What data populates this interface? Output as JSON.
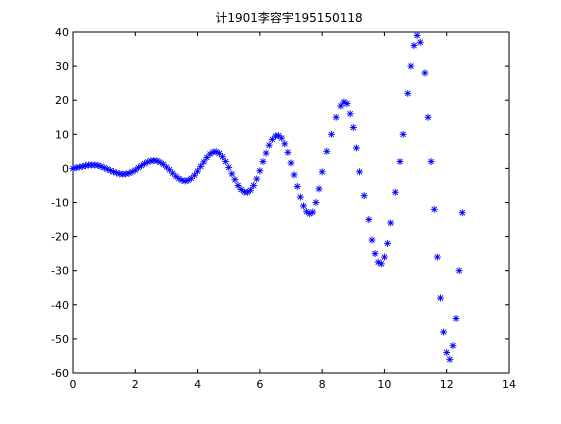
{
  "chart_data": {
    "type": "scatter",
    "title": "计1901李容宇195150118",
    "xlabel": "",
    "ylabel": "",
    "xlim": [
      0,
      14
    ],
    "ylim": [
      -60,
      40
    ],
    "xticks": [
      0,
      2,
      4,
      6,
      8,
      10,
      12,
      14
    ],
    "yticks": [
      -60,
      -50,
      -40,
      -30,
      -20,
      -10,
      0,
      10,
      20,
      30,
      40
    ],
    "grid": false,
    "legend": "none",
    "marker": "asterisk",
    "color": "#0000ff",
    "x": [
      0.0,
      0.1,
      0.2,
      0.3,
      0.4,
      0.5,
      0.6,
      0.7,
      0.8,
      0.9,
      1.0,
      1.1,
      1.2,
      1.3,
      1.4,
      1.5,
      1.6,
      1.7,
      1.8,
      1.9,
      2.0,
      2.1,
      2.2,
      2.3,
      2.4,
      2.5,
      2.6,
      2.7,
      2.8,
      2.9,
      3.0,
      3.1,
      3.2,
      3.3,
      3.4,
      3.5,
      3.6,
      3.7,
      3.8,
      3.9,
      4.0,
      4.1,
      4.2,
      4.3,
      4.4,
      4.5,
      4.6,
      4.7,
      4.8,
      4.9,
      5.0,
      5.1,
      5.2,
      5.3,
      5.4,
      5.5,
      5.6,
      5.7,
      5.8,
      5.9,
      6.0,
      6.1,
      6.2,
      6.3,
      6.4,
      6.5,
      6.6,
      6.7,
      6.8,
      6.9,
      7.0,
      7.1,
      7.2,
      7.3,
      7.4,
      7.5,
      7.6,
      7.7,
      7.8,
      7.9,
      8.0,
      8.15,
      8.3,
      8.45,
      8.6,
      8.7,
      8.8,
      8.9,
      9.0,
      9.1,
      9.2,
      9.35,
      9.5,
      9.6,
      9.7,
      9.8,
      9.9,
      10.0,
      10.1,
      10.2,
      10.35,
      10.5,
      10.6,
      10.75,
      10.85,
      10.95,
      11.05,
      11.15,
      11.3,
      11.4,
      11.5,
      11.6,
      11.7,
      11.8,
      11.9,
      12.0,
      12.1,
      12.2,
      12.3,
      12.4,
      12.5
    ],
    "y": [
      0.0,
      0.2,
      0.4,
      0.6,
      0.8,
      1.0,
      1.0,
      1.0,
      0.9,
      0.6,
      0.2,
      -0.2,
      -0.6,
      -1.0,
      -1.3,
      -1.6,
      -1.7,
      -1.6,
      -1.4,
      -1.0,
      -0.5,
      0.2,
      0.8,
      1.4,
      1.9,
      2.2,
      2.3,
      2.2,
      1.8,
      1.2,
      0.4,
      -0.4,
      -1.4,
      -2.3,
      -3.0,
      -3.5,
      -3.7,
      -3.5,
      -2.9,
      -2.0,
      -0.8,
      0.6,
      1.9,
      3.2,
      4.2,
      4.8,
      4.9,
      4.4,
      3.4,
      2.0,
      0.3,
      -1.6,
      -3.3,
      -5.0,
      -6.2,
      -6.9,
      -7.0,
      -6.4,
      -5.0,
      -3.1,
      -0.7,
      2.0,
      4.5,
      6.8,
      8.5,
      9.5,
      9.6,
      8.9,
      7.2,
      4.7,
      1.6,
      -1.9,
      -5.3,
      -8.4,
      -11.0,
      -12.7,
      -13.3,
      -12.8,
      -10.0,
      -6.0,
      -1.0,
      5.0,
      10.0,
      15.0,
      18.3,
      19.5,
      19.0,
      16.0,
      12.0,
      6.0,
      -1.0,
      -8.0,
      -15.0,
      -21.0,
      -25.0,
      -27.5,
      -28.0,
      -26.0,
      -22.0,
      -16.0,
      -7.0,
      2.0,
      10.0,
      22.0,
      30.0,
      36.0,
      39.0,
      37.0,
      28.0,
      15.0,
      2.0,
      -12.0,
      -26.0,
      -38.0,
      -48.0,
      -54.0,
      -56.0,
      -52.0,
      -44.0,
      -30.0,
      -13.0
    ]
  }
}
